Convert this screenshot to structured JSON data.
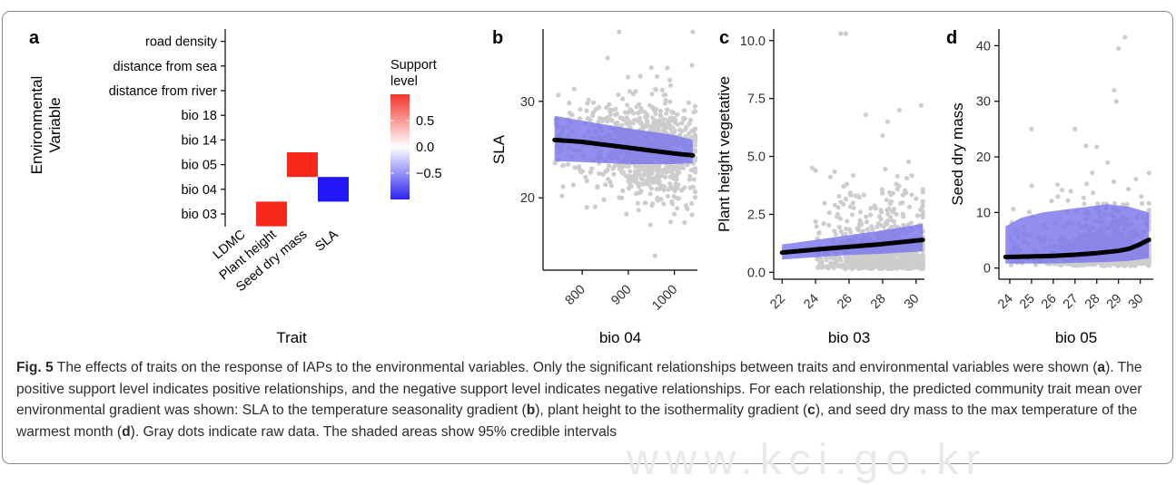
{
  "figure": {
    "panel_letters": [
      "a",
      "b",
      "c",
      "d"
    ],
    "caption": {
      "label": "Fig. 5",
      "parts": [
        "The effects of traits on the response of IAPs to the environmental variables. Only the significant relationships between traits and environmental variables were shown (",
        "a",
        "). The positive support level indicates positive relationships, and the negative support level indicates negative relationships. For each relationship, the predicted community trait mean over environmental gradient was shown: SLA to the temperature seasonality gradient (",
        "b",
        "), plant height to the isothermality gradient (",
        "c",
        "), and seed dry mass to the max temperature of the warmest month (",
        "d",
        "). Gray dots indicate raw data. The shaded areas show 95% credible intervals"
      ]
    },
    "watermark": "www.kci.go.kr"
  },
  "colors": {
    "positive": "#f8261b",
    "negative": "#1f17f5",
    "ribbon": "#7a76ee",
    "points": "#cdcdcd",
    "line": "#000000"
  },
  "chart_data": [
    {
      "panel": "a",
      "type": "heatmap",
      "xlabel": "Trait",
      "ylabel": "Environmental Variable",
      "x_categories": [
        "LDMC",
        "Plant height",
        "Seed dry mass",
        "SLA"
      ],
      "y_categories": [
        "road density",
        "distance from sea",
        "distance from river",
        "bio 18",
        "bio 14",
        "bio 05",
        "bio 04",
        "bio 03"
      ],
      "cells": [
        {
          "x": "Seed dry mass",
          "y": "bio 05",
          "value": 1
        },
        {
          "x": "SLA",
          "y": "bio 04",
          "value": -1
        },
        {
          "x": "Plant height",
          "y": "bio 03",
          "value": 1
        }
      ],
      "legend": {
        "title": "Support level",
        "ticks": [
          "0.5",
          "0.0",
          "−0.5"
        ],
        "tick_values": [
          0.5,
          0.0,
          -0.5
        ],
        "range": [
          -1,
          1
        ]
      }
    },
    {
      "panel": "b",
      "type": "scatter",
      "xlabel": "bio 04",
      "ylabel": "SLA",
      "xlim": [
        715,
        1050
      ],
      "ylim": [
        12.5,
        37.5
      ],
      "xticks": [
        800,
        900,
        1000
      ],
      "yticks": [
        20,
        30
      ],
      "fit": {
        "x": [
          740,
          800,
          850,
          900,
          950,
          1000,
          1040
        ],
        "y": [
          26.0,
          25.8,
          25.5,
          25.2,
          24.9,
          24.6,
          24.4
        ]
      },
      "band": {
        "x": [
          740,
          800,
          900,
          1000,
          1040
        ],
        "lower": [
          23.8,
          23.7,
          23.5,
          23.5,
          23.6
        ],
        "upper": [
          28.5,
          28.0,
          27.2,
          26.5,
          26.0
        ]
      },
      "points": {
        "seed": 11,
        "n": 900,
        "x_range": [
          740,
          1045
        ],
        "center": 950,
        "spread": 55,
        "noise": 2.5,
        "outliers": [
          [
            880,
            37.2
          ],
          [
            1040,
            37.2
          ],
          [
            855,
            34.5
          ],
          [
            950,
            33.5
          ],
          [
            990,
            32.2
          ],
          [
            810,
            19.0
          ],
          [
            948,
            17.2
          ],
          [
            958,
            14.0
          ],
          [
            992,
            17.5
          ]
        ]
      }
    },
    {
      "panel": "c",
      "type": "scatter",
      "xlabel": "bio 03",
      "ylabel": "Plant height vegetative",
      "xlim": [
        21.5,
        30.5
      ],
      "ylim": [
        -0.3,
        10.5
      ],
      "xticks": [
        22,
        24,
        26,
        28,
        30
      ],
      "yticks": [
        0.0,
        2.5,
        5.0,
        7.5,
        10.0
      ],
      "ytick_labels": [
        "0.0",
        "2.5",
        "5.0",
        "7.5",
        "10.0"
      ],
      "fit": {
        "x": [
          22,
          24,
          26,
          28,
          30.4
        ],
        "y": [
          0.85,
          0.98,
          1.1,
          1.22,
          1.4
        ]
      },
      "band": {
        "x": [
          22,
          24,
          26,
          28,
          30.4
        ],
        "lower": [
          0.55,
          0.65,
          0.75,
          0.8,
          0.9
        ],
        "upper": [
          1.2,
          1.4,
          1.6,
          1.8,
          2.1
        ]
      },
      "points": {
        "seed": 23,
        "n": 1000,
        "x_range": [
          24.0,
          30.4
        ],
        "center": 28.0,
        "spread": 1.5,
        "outliers": [
          [
            25.5,
            10.3
          ],
          [
            25.8,
            10.3
          ],
          [
            23.8,
            4.5
          ],
          [
            29.0,
            7.0
          ],
          [
            27.0,
            6.8
          ],
          [
            28.3,
            6.5
          ],
          [
            30.3,
            7.2
          ],
          [
            28.0,
            5.9
          ]
        ]
      }
    },
    {
      "panel": "d",
      "type": "scatter",
      "xlabel": "bio 05",
      "ylabel": "Seed dry mass",
      "xlim": [
        23.5,
        30.6
      ],
      "ylim": [
        -2,
        43
      ],
      "xticks": [
        24,
        25,
        26,
        27,
        28,
        29,
        30
      ],
      "yticks": [
        0,
        10,
        20,
        30,
        40
      ],
      "fit": {
        "x": [
          23.8,
          25,
          26,
          27,
          28,
          29,
          29.5,
          30.0,
          30.4
        ],
        "y": [
          2.0,
          2.1,
          2.2,
          2.4,
          2.7,
          3.1,
          3.5,
          4.3,
          5.1
        ]
      },
      "band": {
        "x": [
          23.8,
          24.5,
          25.5,
          26.5,
          27.5,
          28.5,
          29.5,
          30.4
        ],
        "lower": [
          0.8,
          0.8,
          0.8,
          0.9,
          1.0,
          1.1,
          1.3,
          1.8
        ],
        "upper": [
          7.5,
          9.0,
          10.0,
          10.5,
          11.0,
          11.5,
          11.0,
          10.0
        ]
      },
      "points": {
        "seed": 37,
        "n": 800,
        "x_range": [
          24.0,
          30.4
        ],
        "center": 28.7,
        "spread": 1.1,
        "outliers": [
          [
            29.3,
            41.5
          ],
          [
            29.0,
            39.5
          ],
          [
            28.8,
            32.0
          ],
          [
            28.9,
            30.0
          ],
          [
            27.0,
            25.0
          ],
          [
            25.0,
            25.0
          ],
          [
            28.0,
            21.8
          ],
          [
            27.5,
            22.0
          ],
          [
            26.2,
            15.0
          ],
          [
            28.5,
            19.0
          ],
          [
            29.8,
            16.0
          ]
        ]
      }
    }
  ]
}
